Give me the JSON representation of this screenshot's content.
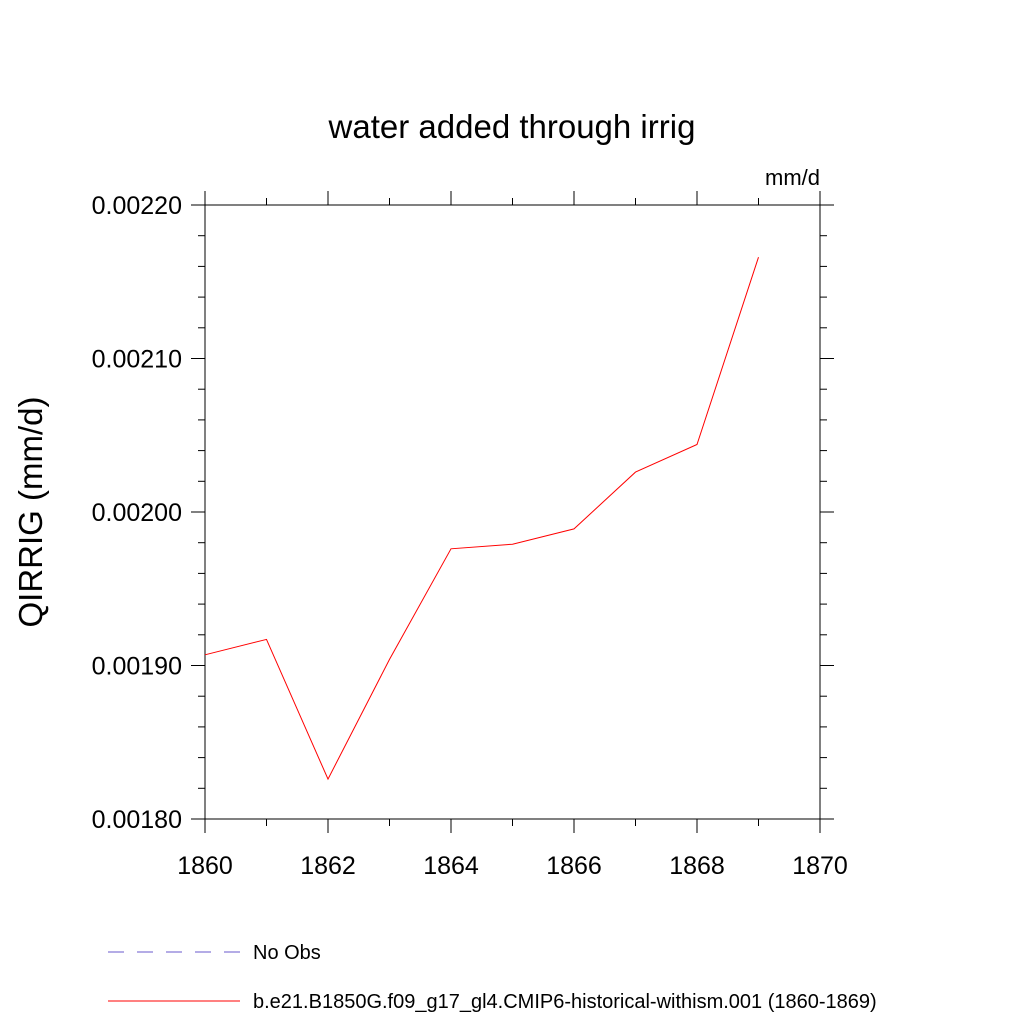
{
  "chart_data": {
    "type": "line",
    "title": "water added through irrig",
    "units_label": "mm/d",
    "ylabel": "QIRRIG  (mm/d)",
    "xlabel": "",
    "xlim": [
      1860,
      1870
    ],
    "ylim": [
      0.0018,
      0.0022
    ],
    "x_ticks": [
      1860,
      1862,
      1864,
      1866,
      1868,
      1870
    ],
    "x_tick_labels": [
      "1860",
      "1862",
      "1864",
      "1866",
      "1868",
      "1870"
    ],
    "y_ticks": [
      0.0018,
      0.0019,
      0.002,
      0.0021,
      0.0022
    ],
    "y_tick_labels": [
      "0.00180",
      "0.00190",
      "0.00200",
      "0.00210",
      "0.00220"
    ],
    "x_minor_step": 1,
    "y_minor_step": 2e-05,
    "grid": false,
    "series": [
      {
        "name": "b.e21.B1850G.f09_g17_gl4.CMIP6-historical-withism.001 (1860-1869)",
        "color": "#ff0000",
        "x": [
          1860,
          1861,
          1862,
          1863,
          1864,
          1865,
          1866,
          1867,
          1868,
          1869
        ],
        "y": [
          0.001907,
          0.001917,
          0.001826,
          0.001904,
          0.001976,
          0.001979,
          0.001989,
          0.002026,
          0.002044,
          0.002166
        ]
      }
    ],
    "legend": {
      "placement": "bottom",
      "entries": [
        {
          "label": "No Obs",
          "color": "#6a5acd",
          "style": "dashed"
        },
        {
          "label": "b.e21.B1850G.f09_g17_gl4.CMIP6-historical-withism.001 (1860-1869)",
          "color": "#ff0000",
          "style": "solid"
        }
      ]
    }
  }
}
